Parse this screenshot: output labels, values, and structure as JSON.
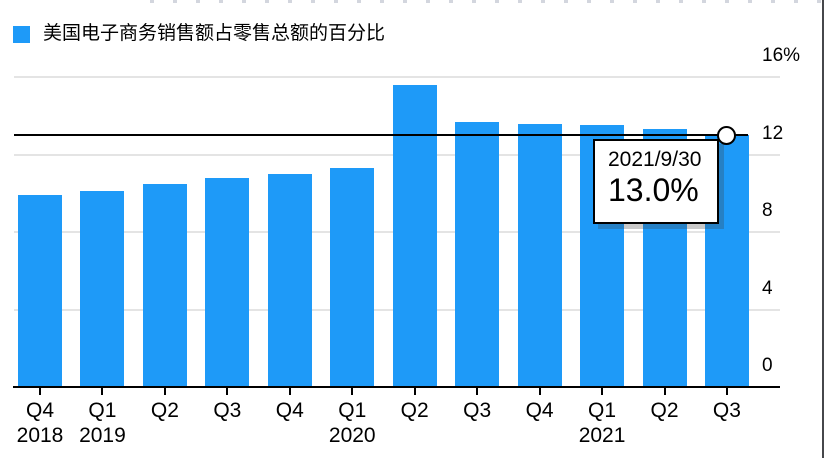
{
  "legend": {
    "label": "美国电子商务销售额占零售总额的百分比"
  },
  "tooltip": {
    "date": "2021/9/30",
    "value": "13.0%"
  },
  "colors": {
    "bar": "#1E9AF8",
    "grid": "#E4E4E4",
    "axis": "#000000",
    "tooltip_bg": "#FFFFFF"
  },
  "chart_data": {
    "type": "bar",
    "title": "",
    "series_name": "美国电子商务销售额占零售总额的百分比",
    "unit": "%",
    "categories": [
      "Q4 2018",
      "Q1 2019",
      "Q2 2019",
      "Q3 2019",
      "Q4 2019",
      "Q1 2020",
      "Q2 2020",
      "Q3 2020",
      "Q4 2020",
      "Q1 2021",
      "Q2 2021",
      "Q3 2021"
    ],
    "values": [
      9.9,
      10.1,
      10.5,
      10.8,
      11.0,
      11.3,
      15.6,
      13.7,
      13.6,
      13.5,
      13.3,
      13.0
    ],
    "x_tick_labels": [
      {
        "quarter": "Q4",
        "year": "2018"
      },
      {
        "quarter": "Q1",
        "year": "2019"
      },
      {
        "quarter": "Q2",
        "year": ""
      },
      {
        "quarter": "Q3",
        "year": ""
      },
      {
        "quarter": "Q4",
        "year": ""
      },
      {
        "quarter": "Q1",
        "year": "2020"
      },
      {
        "quarter": "Q2",
        "year": ""
      },
      {
        "quarter": "Q3",
        "year": ""
      },
      {
        "quarter": "Q4",
        "year": ""
      },
      {
        "quarter": "Q1",
        "year": "2021"
      },
      {
        "quarter": "Q2",
        "year": ""
      },
      {
        "quarter": "Q3",
        "year": ""
      }
    ],
    "y_ticks": [
      {
        "value": 16,
        "label": "16%"
      },
      {
        "value": 12,
        "label": "12"
      },
      {
        "value": 8,
        "label": "8"
      },
      {
        "value": 4,
        "label": "4"
      },
      {
        "value": 0,
        "label": "0"
      }
    ],
    "ylim": [
      0,
      16
    ],
    "grid": "horizontal",
    "legend_position": "top-left",
    "y_axis_side": "right",
    "reference_line": {
      "value": 13.0
    },
    "highlight_point": {
      "category": "Q3 2021",
      "value": 13.0,
      "date": "2021/9/30"
    }
  }
}
